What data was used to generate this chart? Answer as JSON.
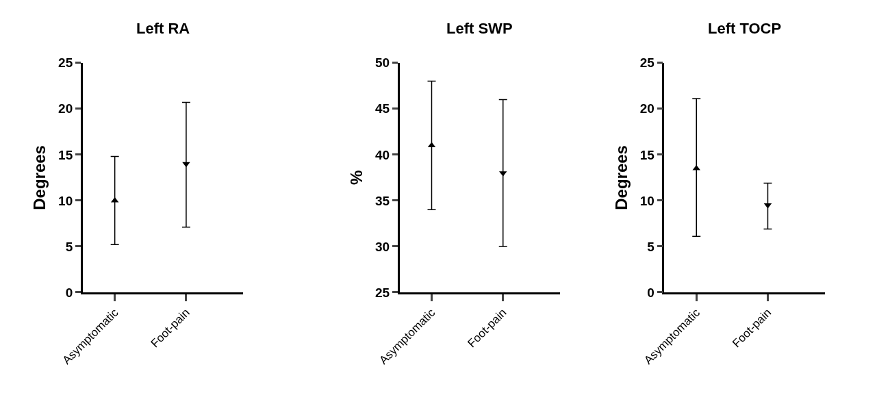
{
  "chart_data": [
    {
      "type": "scatter",
      "title": "Left RA",
      "ylabel": "Degrees",
      "categories": [
        "Asymptomatic",
        "Foot-pain"
      ],
      "ylim": [
        0,
        25
      ],
      "yticks": [
        0,
        5,
        10,
        15,
        20,
        25
      ],
      "series": [
        {
          "color": "#000000",
          "marker": "triangle-up",
          "values": [
            10,
            null
          ],
          "errors": [
            [
              5.2,
              14.8
            ],
            null
          ]
        },
        {
          "color": "#000000",
          "marker": "triangle-down",
          "values": [
            null,
            14
          ],
          "errors": [
            null,
            [
              7.1,
              20.7
            ]
          ]
        }
      ]
    },
    {
      "type": "scatter",
      "title": "Left SWP",
      "ylabel": "%",
      "categories": [
        "Asymptomatic",
        "Foot-pain"
      ],
      "ylim": [
        25,
        50
      ],
      "yticks": [
        25,
        30,
        35,
        40,
        45,
        50
      ],
      "series": [
        {
          "color": "#000000",
          "marker": "triangle-up",
          "values": [
            41,
            null
          ],
          "errors": [
            [
              34,
              48
            ],
            null
          ]
        },
        {
          "color": "#000000",
          "marker": "triangle-down",
          "values": [
            null,
            38
          ],
          "errors": [
            null,
            [
              30,
              46
            ]
          ]
        }
      ]
    },
    {
      "type": "scatter",
      "title": "Left TOCP",
      "ylabel": "Degrees",
      "categories": [
        "Asymptomatic",
        "Foot-pain"
      ],
      "ylim": [
        0,
        25
      ],
      "yticks": [
        0,
        5,
        10,
        15,
        20,
        25
      ],
      "series": [
        {
          "color": "#000000",
          "marker": "triangle-up",
          "values": [
            13.5,
            null
          ],
          "errors": [
            [
              6.1,
              21.1
            ],
            null
          ]
        },
        {
          "color": "#000000",
          "marker": "triangle-down",
          "values": [
            null,
            9.5
          ],
          "errors": [
            null,
            [
              6.9,
              11.9
            ]
          ]
        }
      ]
    }
  ]
}
